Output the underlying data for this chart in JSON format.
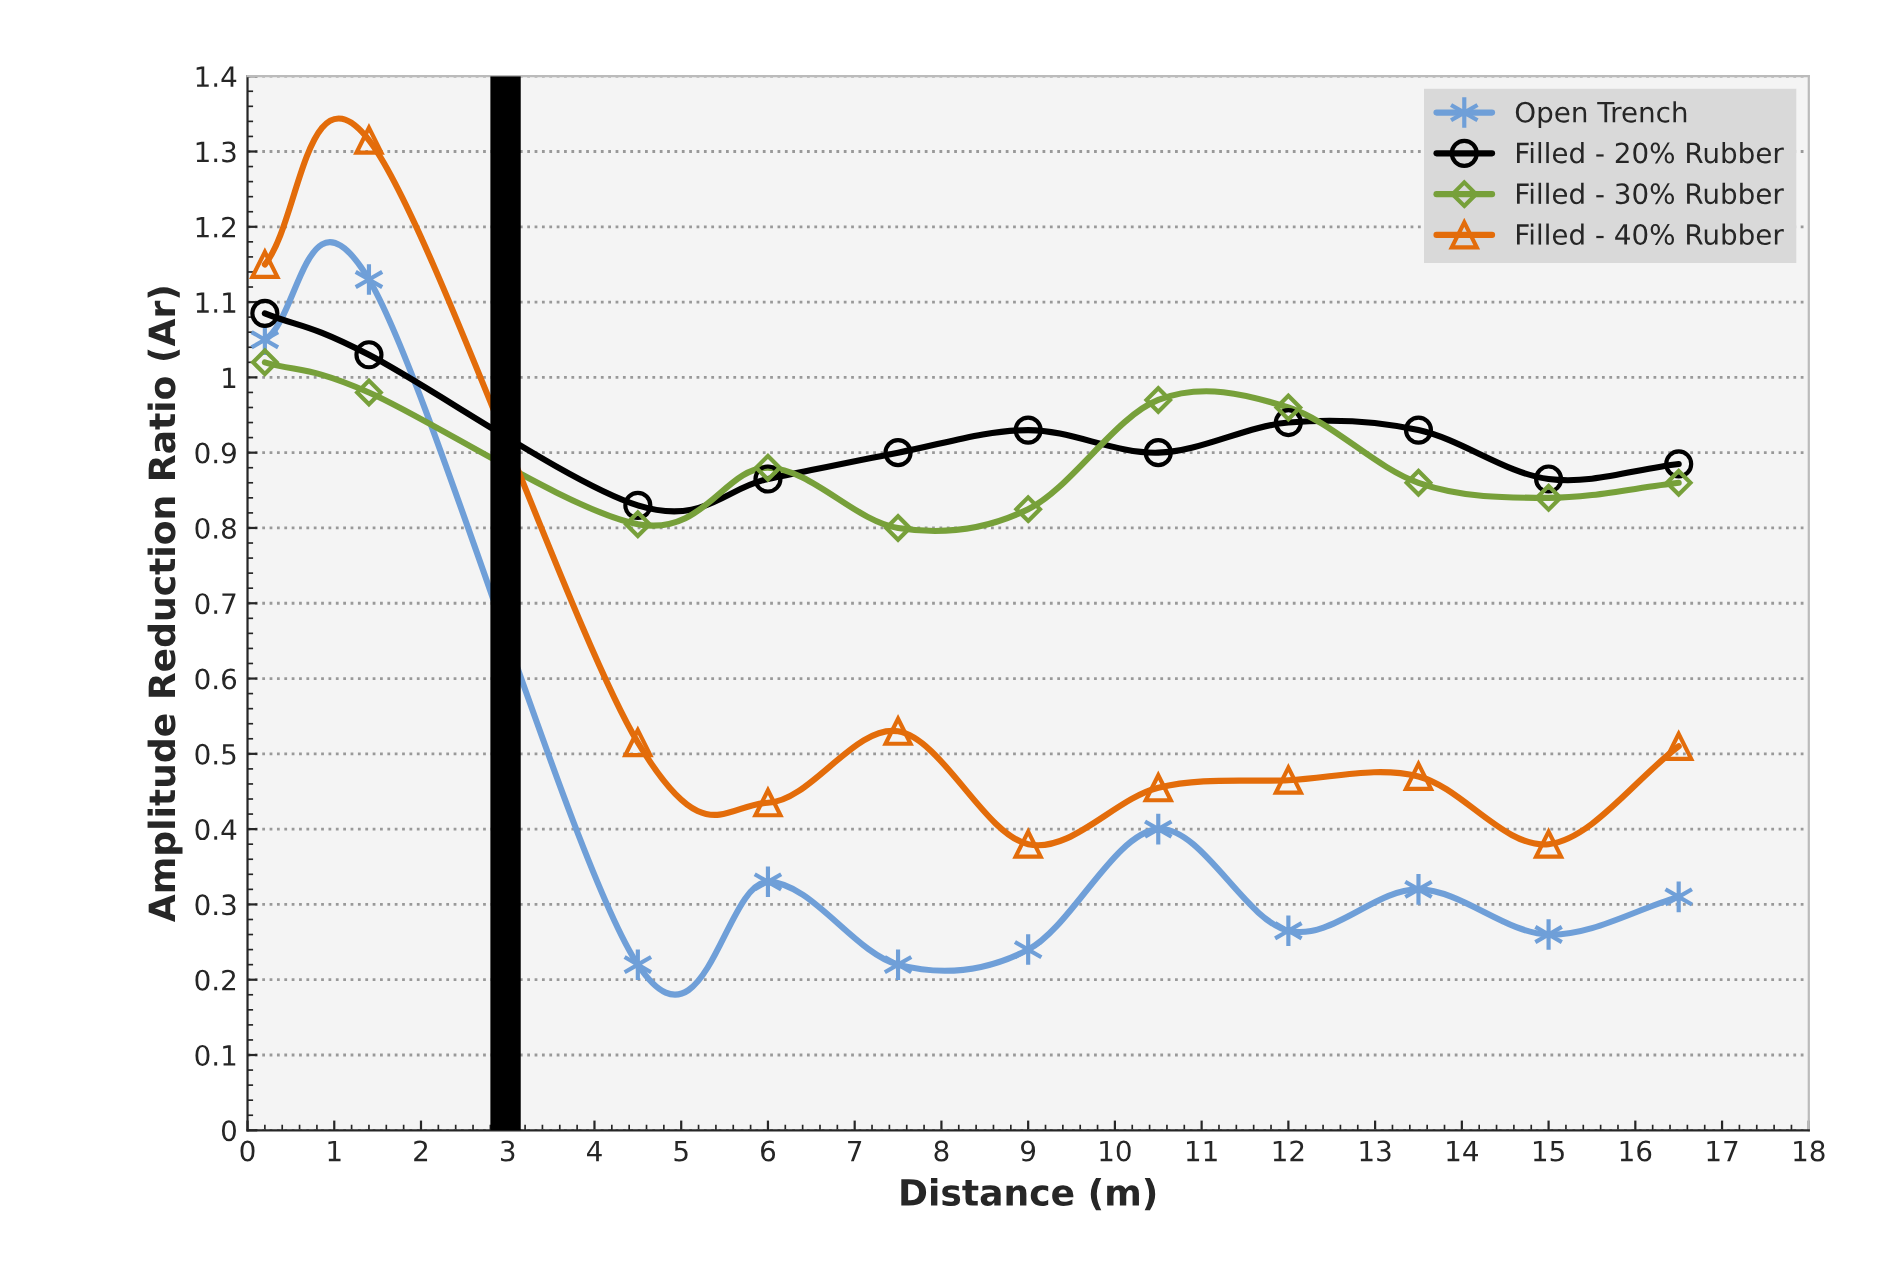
{
  "chart_data": {
    "type": "line",
    "xlabel": "Distance (m)",
    "ylabel": "Amplitude Reduction Ratio (Ar)",
    "x": [
      0.2,
      1.4,
      4.5,
      6,
      7.5,
      9,
      10.5,
      12,
      13.5,
      15,
      16.5
    ],
    "series": [
      {
        "name": "Open Trench",
        "color": "#6f9fd8",
        "marker": "cross",
        "values": [
          1.05,
          1.13,
          0.22,
          0.33,
          0.22,
          0.24,
          0.4,
          0.265,
          0.32,
          0.26,
          0.31
        ]
      },
      {
        "name": "Filled - 20% Rubber",
        "color": "#000000",
        "marker": "circle",
        "values": [
          1.085,
          1.03,
          0.83,
          0.865,
          0.9,
          0.93,
          0.9,
          0.94,
          0.93,
          0.865,
          0.885
        ]
      },
      {
        "name": "Filled - 30% Rubber",
        "color": "#77a03a",
        "marker": "diamond",
        "values": [
          1.02,
          0.98,
          0.805,
          0.88,
          0.8,
          0.825,
          0.97,
          0.96,
          0.86,
          0.84,
          0.86
        ]
      },
      {
        "name": "Filled - 40% Rubber",
        "color": "#e36c0a",
        "marker": "triangle",
        "values": [
          1.15,
          1.315,
          0.515,
          0.435,
          0.53,
          0.38,
          0.455,
          0.465,
          0.47,
          0.38,
          0.51
        ]
      }
    ],
    "xlim": [
      0,
      18
    ],
    "xticks": [
      0,
      1,
      2,
      3,
      4,
      5,
      6,
      7,
      8,
      9,
      10,
      11,
      12,
      13,
      14,
      15,
      16,
      17,
      18
    ],
    "ylim": [
      0,
      1.4
    ],
    "yticks": [
      0,
      0.1,
      0.2,
      0.3,
      0.4,
      0.5,
      0.6,
      0.7,
      0.8,
      0.9,
      1,
      1.1,
      1.2,
      1.3,
      1.4
    ],
    "bands": [
      {
        "axis": "x",
        "from": 2.8,
        "to": 3.15,
        "color": "#000000"
      }
    ],
    "grid": "y",
    "legend": "top right"
  }
}
